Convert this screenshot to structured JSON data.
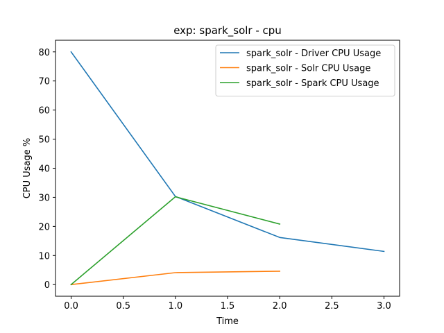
{
  "chart_data": {
    "type": "line",
    "title": "exp: spark_solr - cpu",
    "xlabel": "Time",
    "ylabel": "CPU Usage %",
    "xlim": [
      -0.15,
      3.15
    ],
    "ylim": [
      -4,
      84
    ],
    "xticks": [
      0.0,
      0.5,
      1.0,
      1.5,
      2.0,
      2.5,
      3.0
    ],
    "xtick_labels": [
      "0.0",
      "0.5",
      "1.0",
      "1.5",
      "2.0",
      "2.5",
      "3.0"
    ],
    "yticks": [
      0,
      10,
      20,
      30,
      40,
      50,
      60,
      70,
      80
    ],
    "ytick_labels": [
      "0",
      "10",
      "20",
      "30",
      "40",
      "50",
      "60",
      "70",
      "80"
    ],
    "grid": false,
    "legend_position": "top-right",
    "series": [
      {
        "name": "spark_solr - Driver CPU Usage",
        "color": "#1f77b4",
        "x": [
          0,
          1,
          2,
          3
        ],
        "y": [
          80.0,
          30.3,
          16.2,
          11.4
        ]
      },
      {
        "name": "spark_solr - Solr CPU Usage",
        "color": "#ff7f0e",
        "x": [
          0,
          1,
          2
        ],
        "y": [
          0.0,
          4.1,
          4.6
        ]
      },
      {
        "name": "spark_solr - Spark CPU Usage",
        "color": "#2ca02c",
        "x": [
          0,
          1,
          2
        ],
        "y": [
          0.0,
          30.2,
          20.8
        ]
      }
    ]
  }
}
